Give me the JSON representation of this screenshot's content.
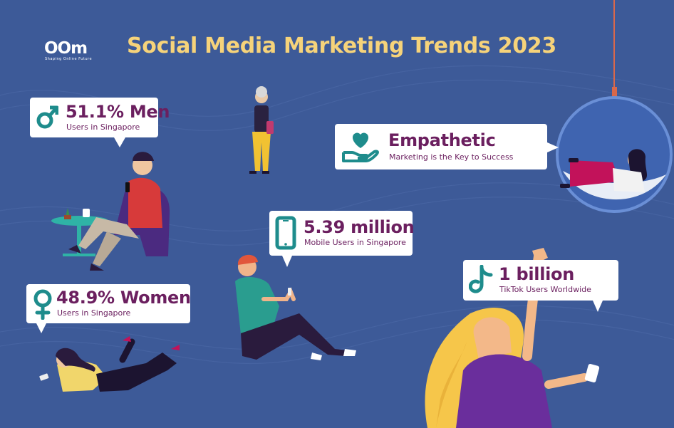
{
  "logo": {
    "mark": "OOm",
    "tagline": "Shaping Online Future"
  },
  "title": "Social Media Marketing Trends 2023",
  "stats": {
    "men": {
      "value": "51.1% Men",
      "caption": "Users in Singapore",
      "icon": "male-symbol-icon"
    },
    "women": {
      "value": "48.9% Women",
      "caption": "Users in Singapore",
      "icon": "female-symbol-icon"
    },
    "empathetic": {
      "value": "Empathetic",
      "caption": "Marketing is the Key to Success",
      "icon": "heart-hand-icon"
    },
    "mobile": {
      "value": "5.39 million",
      "caption": "Mobile Users in Singapore",
      "icon": "smartphone-icon"
    },
    "tiktok": {
      "value": "1 billion",
      "caption": "TikTok Users Worldwide",
      "icon": "tiktok-icon"
    }
  },
  "colors": {
    "background": "#3d5a98",
    "title": "#f6d37a",
    "accent_teal": "#1e8c8c",
    "text_purple": "#6b1f5f"
  }
}
